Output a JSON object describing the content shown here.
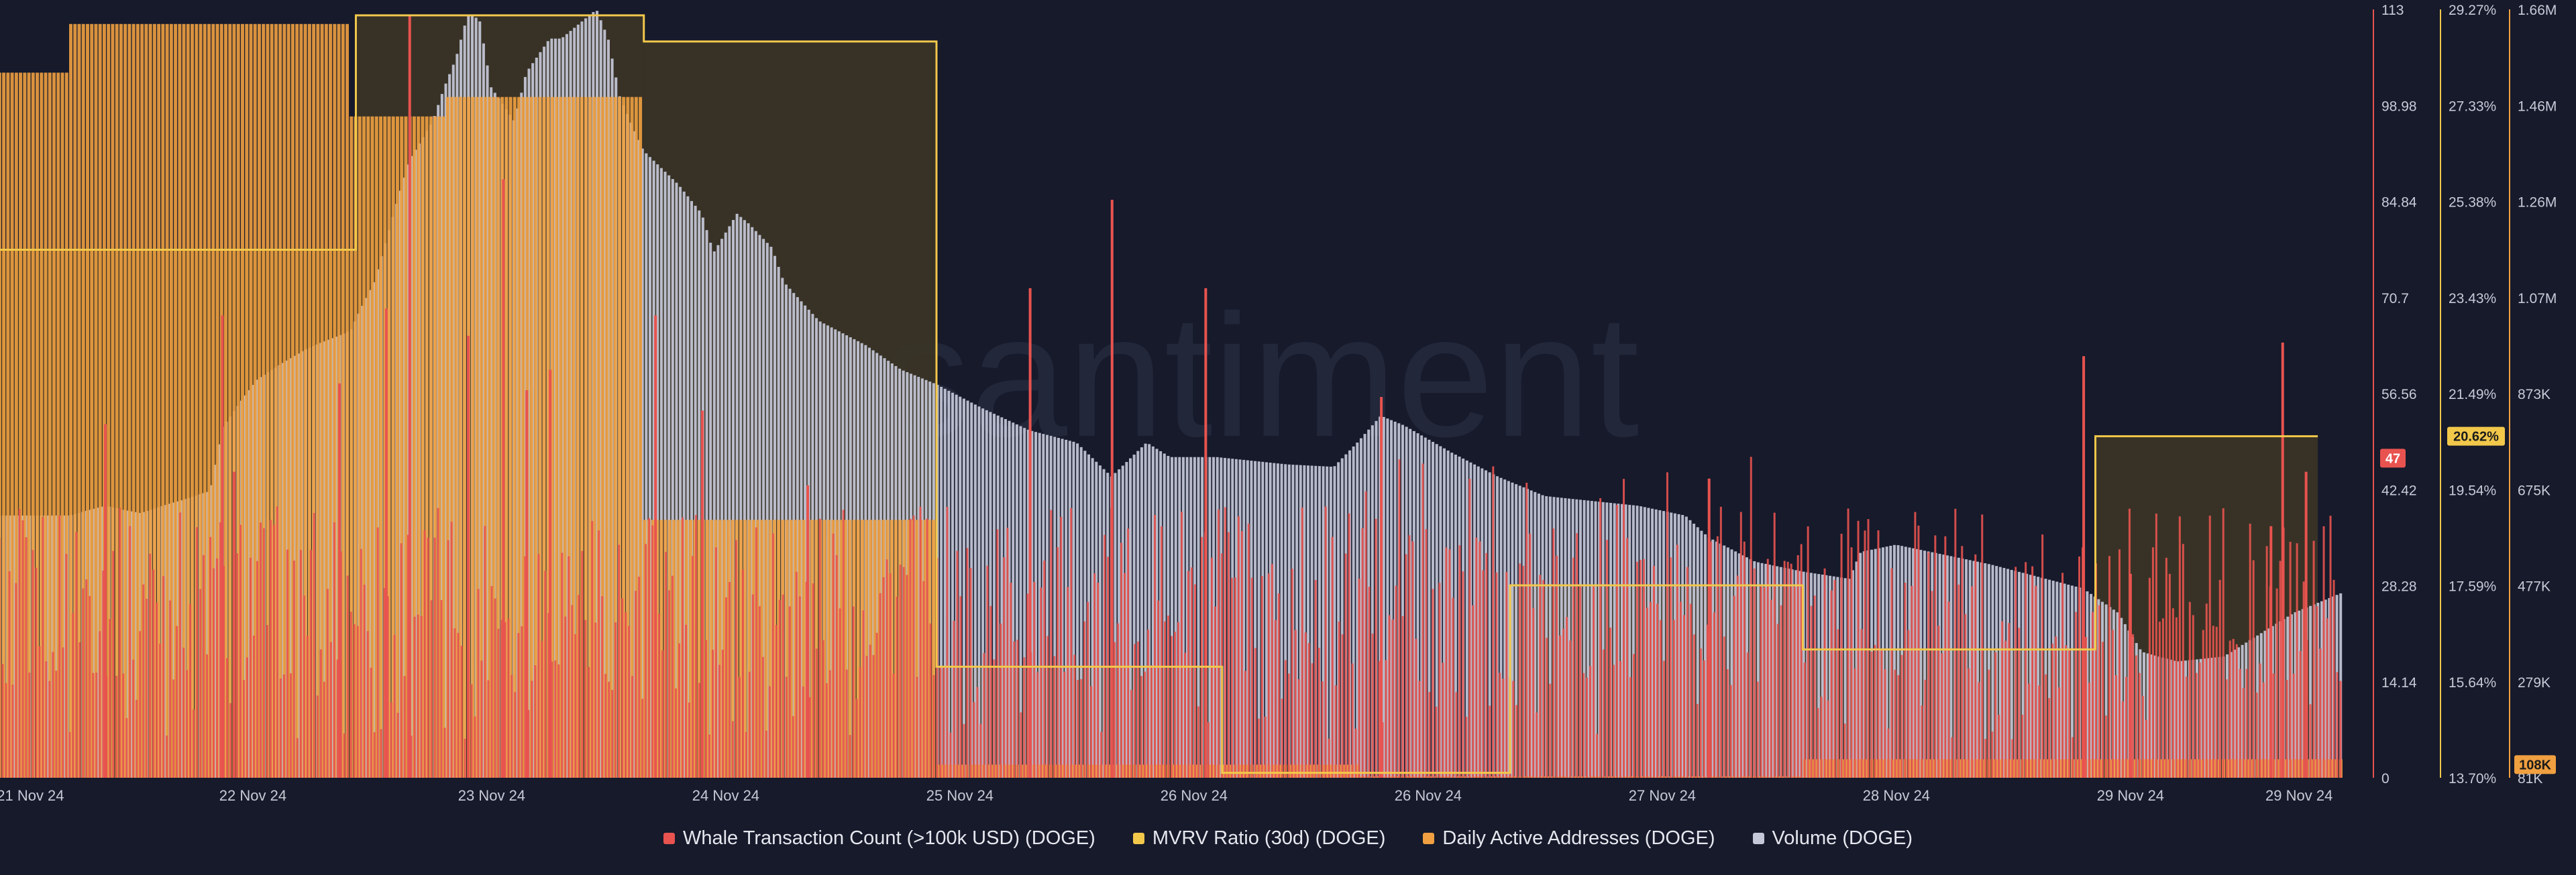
{
  "app": {
    "watermark": "santiment"
  },
  "colors": {
    "background": "#161a2b",
    "whale": "#e8534f",
    "mvrv": "#f2c84b",
    "daa": "#f0a040",
    "volume": "#c5c8d8"
  },
  "legend": [
    {
      "name": "Whale Transaction Count (>100k USD) (DOGE)",
      "color": "#e8534f"
    },
    {
      "name": "MVRV Ratio (30d) (DOGE)",
      "color": "#f2c84b"
    },
    {
      "name": "Daily Active Addresses (DOGE)",
      "color": "#f0a040"
    },
    {
      "name": "Volume (DOGE)",
      "color": "#c5c8d8"
    }
  ],
  "chart_data": {
    "type": "line",
    "x_ticks": [
      "21 Nov 24",
      "22 Nov 24",
      "23 Nov 24",
      "24 Nov 24",
      "25 Nov 24",
      "26 Nov 24",
      "26 Nov 24",
      "27 Nov 24",
      "28 Nov 24",
      "29 Nov 24",
      "29 Nov 24"
    ],
    "axes": {
      "whale": {
        "ticks": [
          "0",
          "14.14",
          "28.28",
          "42.42",
          "56.56",
          "70.7",
          "84.84",
          "98.98",
          "113"
        ],
        "range": [
          0,
          113
        ],
        "last_value_badge": "47"
      },
      "mvrv": {
        "ticks": [
          "13.70%",
          "15.64%",
          "17.59%",
          "19.54%",
          "21.49%",
          "23.43%",
          "25.38%",
          "27.33%",
          "29.27%"
        ],
        "range": [
          13.7,
          29.27
        ],
        "last_value_badge": "20.62%"
      },
      "volume": {
        "ticks": [
          "81K",
          "279K",
          "477K",
          "675K",
          "873K",
          "1.07M",
          "1.26M",
          "1.46M",
          "1.66M"
        ],
        "range": [
          81000,
          1660000
        ],
        "last_value_badge": "108K"
      }
    },
    "series": [
      {
        "name": "Volume (DOGE)",
        "kind": "area",
        "unit": "volume",
        "points": [
          [
            0,
            620
          ],
          [
            0.03,
            620
          ],
          [
            0.045,
            640
          ],
          [
            0.06,
            625
          ],
          [
            0.09,
            670
          ],
          [
            0.095,
            800
          ],
          [
            0.11,
            900
          ],
          [
            0.13,
            960
          ],
          [
            0.15,
            1000
          ],
          [
            0.16,
            1100
          ],
          [
            0.175,
            1350
          ],
          [
            0.185,
            1430
          ],
          [
            0.19,
            1500
          ],
          [
            0.195,
            1560
          ],
          [
            0.2,
            1650
          ],
          [
            0.205,
            1640
          ],
          [
            0.21,
            1500
          ],
          [
            0.22,
            1430
          ],
          [
            0.225,
            1530
          ],
          [
            0.235,
            1600
          ],
          [
            0.24,
            1600
          ],
          [
            0.25,
            1640
          ],
          [
            0.255,
            1660
          ],
          [
            0.26,
            1600
          ],
          [
            0.265,
            1480
          ],
          [
            0.275,
            1370
          ],
          [
            0.29,
            1300
          ],
          [
            0.3,
            1240
          ],
          [
            0.305,
            1160
          ],
          [
            0.31,
            1200
          ],
          [
            0.315,
            1240
          ],
          [
            0.32,
            1220
          ],
          [
            0.33,
            1170
          ],
          [
            0.335,
            1100
          ],
          [
            0.35,
            1020
          ],
          [
            0.37,
            970
          ],
          [
            0.385,
            920
          ],
          [
            0.4,
            890
          ],
          [
            0.42,
            840
          ],
          [
            0.44,
            795
          ],
          [
            0.46,
            770
          ],
          [
            0.475,
            700
          ],
          [
            0.49,
            770
          ],
          [
            0.5,
            740
          ],
          [
            0.52,
            740
          ],
          [
            0.55,
            725
          ],
          [
            0.57,
            720
          ],
          [
            0.58,
            770
          ],
          [
            0.59,
            825
          ],
          [
            0.6,
            805
          ],
          [
            0.62,
            750
          ],
          [
            0.64,
            700
          ],
          [
            0.66,
            660
          ],
          [
            0.68,
            650
          ],
          [
            0.7,
            640
          ],
          [
            0.72,
            620
          ],
          [
            0.73,
            575
          ],
          [
            0.75,
            525
          ],
          [
            0.77,
            505
          ],
          [
            0.79,
            490
          ],
          [
            0.795,
            545
          ],
          [
            0.81,
            560
          ],
          [
            0.83,
            540
          ],
          [
            0.85,
            520
          ],
          [
            0.87,
            495
          ],
          [
            0.89,
            470
          ],
          [
            0.905,
            420
          ],
          [
            0.915,
            340
          ],
          [
            0.93,
            320
          ],
          [
            0.95,
            330
          ],
          [
            0.96,
            360
          ],
          [
            0.97,
            390
          ],
          [
            0.98,
            420
          ],
          [
            1.0,
            460
          ]
        ]
      },
      {
        "name": "Daily Active Addresses (DOGE)",
        "kind": "step",
        "unit": "volume",
        "points": [
          [
            0,
            1530
          ],
          [
            0.03,
            1630
          ],
          [
            0.15,
            1630
          ],
          [
            0.15,
            1440
          ],
          [
            0.19,
            1440
          ],
          [
            0.19,
            1480
          ],
          [
            0.275,
            1480
          ],
          [
            0.275,
            611
          ],
          [
            0.4,
            611
          ],
          [
            0.4,
            108
          ],
          [
            0.58,
            108
          ],
          [
            0.58,
            81
          ],
          [
            0.77,
            81
          ],
          [
            0.77,
            119
          ],
          [
            1.0,
            119
          ]
        ]
      },
      {
        "name": "MVRV Ratio (30d) (DOGE)",
        "kind": "step",
        "unit": "mvrv",
        "points": [
          [
            0,
            24.4
          ],
          [
            0.152,
            24.4
          ],
          [
            0.152,
            29.15
          ],
          [
            0.275,
            29.15
          ],
          [
            0.275,
            28.62
          ],
          [
            0.4,
            28.62
          ],
          [
            0.4,
            15.95
          ],
          [
            0.522,
            15.95
          ],
          [
            0.522,
            13.8
          ],
          [
            0.645,
            13.8
          ],
          [
            0.645,
            17.6
          ],
          [
            0.77,
            17.6
          ],
          [
            0.77,
            16.3
          ],
          [
            0.895,
            16.3
          ],
          [
            0.895,
            20.62
          ],
          [
            0.99,
            20.62
          ]
        ]
      },
      {
        "name": "Whale Transaction Count (>100k USD) (DOGE)",
        "kind": "bar",
        "unit": "whale",
        "baseline_range": [
          14,
          40
        ],
        "peaks": [
          [
            0.045,
            52
          ],
          [
            0.095,
            68
          ],
          [
            0.1,
            45
          ],
          [
            0.145,
            58
          ],
          [
            0.165,
            69
          ],
          [
            0.175,
            112
          ],
          [
            0.2,
            65
          ],
          [
            0.215,
            88
          ],
          [
            0.225,
            57
          ],
          [
            0.235,
            60
          ],
          [
            0.28,
            68
          ],
          [
            0.3,
            54
          ],
          [
            0.345,
            43
          ],
          [
            0.44,
            72
          ],
          [
            0.475,
            85
          ],
          [
            0.515,
            72
          ],
          [
            0.59,
            56
          ],
          [
            0.73,
            44
          ],
          [
            0.89,
            62
          ],
          [
            0.91,
            30
          ],
          [
            0.97,
            37
          ],
          [
            0.975,
            64
          ],
          [
            0.985,
            45
          ]
        ]
      }
    ]
  }
}
